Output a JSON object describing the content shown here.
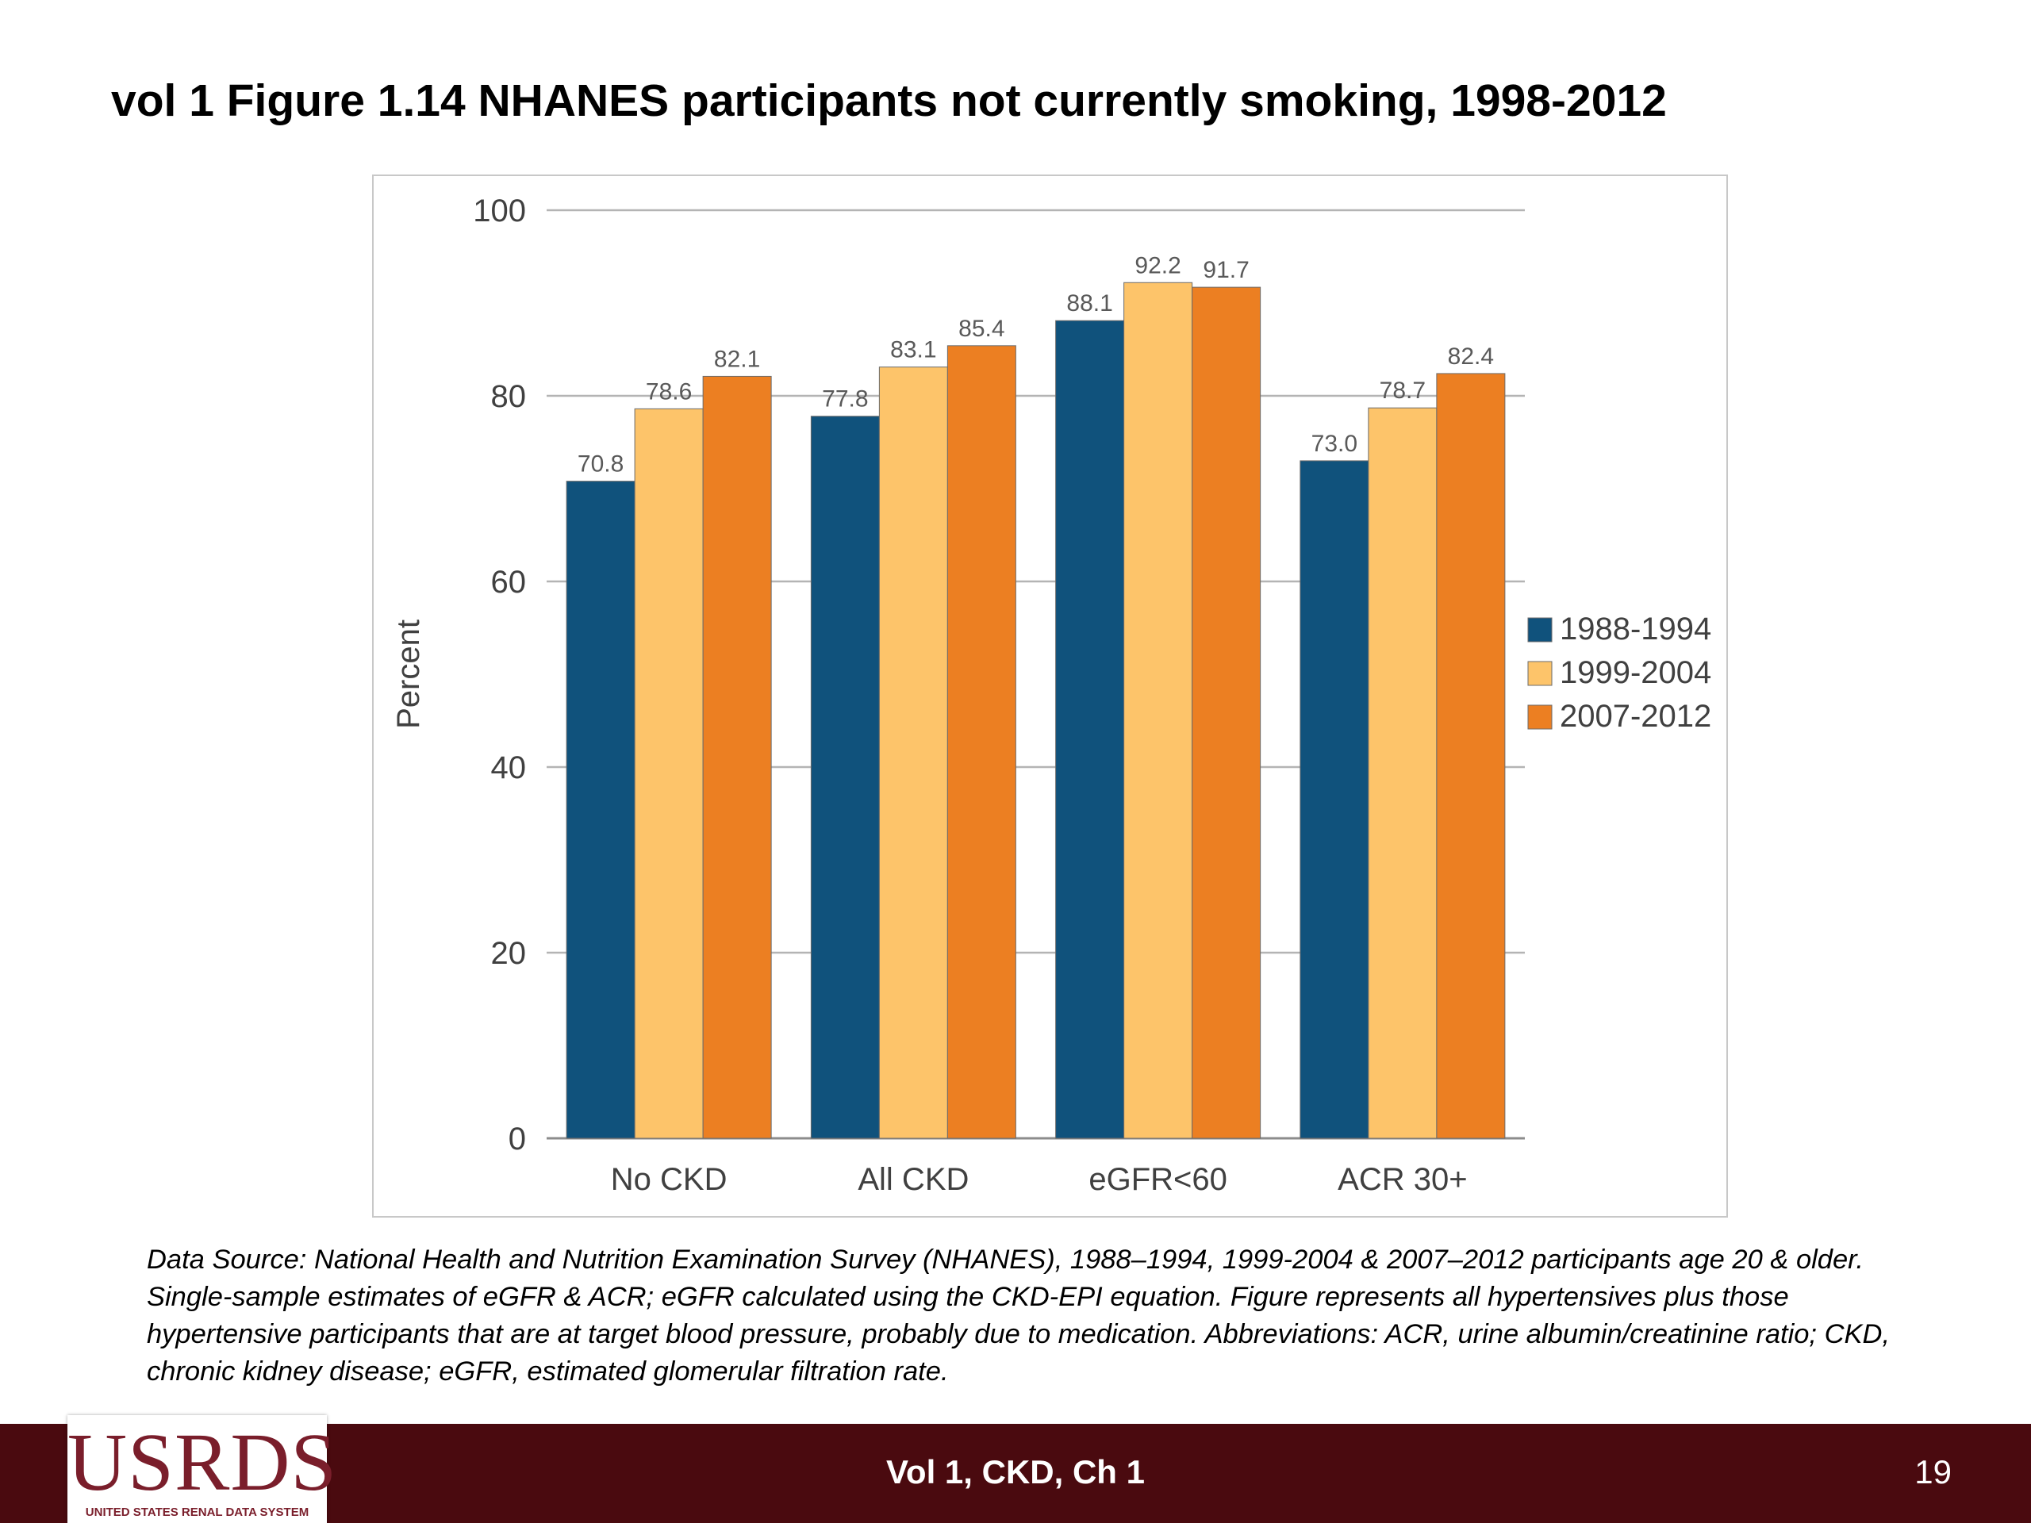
{
  "slide": {
    "title": "vol 1 Figure 1.14  NHANES participants not currently smoking, 1998-2012",
    "data_source": "Data Source: National Health and Nutrition Examination Survey (NHANES), 1988–1994, 1999-2004 & 2007–2012 participants age 20 & older. Single-sample estimates of eGFR & ACR; eGFR calculated using the CKD-EPI equation. Figure represents all hypertensives plus those hypertensive participants that are at target blood pressure, probably due to medication. Abbreviations: ACR, urine albumin/creatinine ratio; CKD, chronic kidney disease; eGFR, estimated glomerular filtration rate.",
    "footer_label": "Vol 1, CKD, Ch 1",
    "page_number": "19",
    "footer_color": "#4a0a0f"
  },
  "logo": {
    "wordmark": "USRDS",
    "subtitle": "UNITED STATES RENAL DATA SYSTEM",
    "color": "#7a1e2b"
  },
  "chart_data": {
    "type": "bar",
    "title": "",
    "xlabel": "",
    "ylabel": "Percent",
    "ylim": [
      0,
      100
    ],
    "yticks": [
      0,
      20,
      40,
      60,
      80,
      100
    ],
    "grid": true,
    "legend_position": "right",
    "categories": [
      "No CKD",
      "All CKD",
      "eGFR<60",
      "ACR 30+"
    ],
    "series": [
      {
        "name": "1988-1994",
        "color": "#10527c",
        "values": [
          70.8,
          77.8,
          88.1,
          73.0
        ],
        "labels": [
          "70.8",
          "77.8",
          "88.1",
          "73.0"
        ]
      },
      {
        "name": "1999-2004",
        "color": "#fdc46a",
        "values": [
          78.6,
          83.1,
          92.2,
          78.7
        ],
        "labels": [
          "78.6",
          "83.1",
          "92.2",
          "78.7"
        ]
      },
      {
        "name": "2007-2012",
        "color": "#ec7f22",
        "values": [
          82.1,
          85.4,
          91.7,
          82.4
        ],
        "labels": [
          "82.1",
          "85.4",
          "91.7",
          "82.4"
        ]
      }
    ]
  }
}
